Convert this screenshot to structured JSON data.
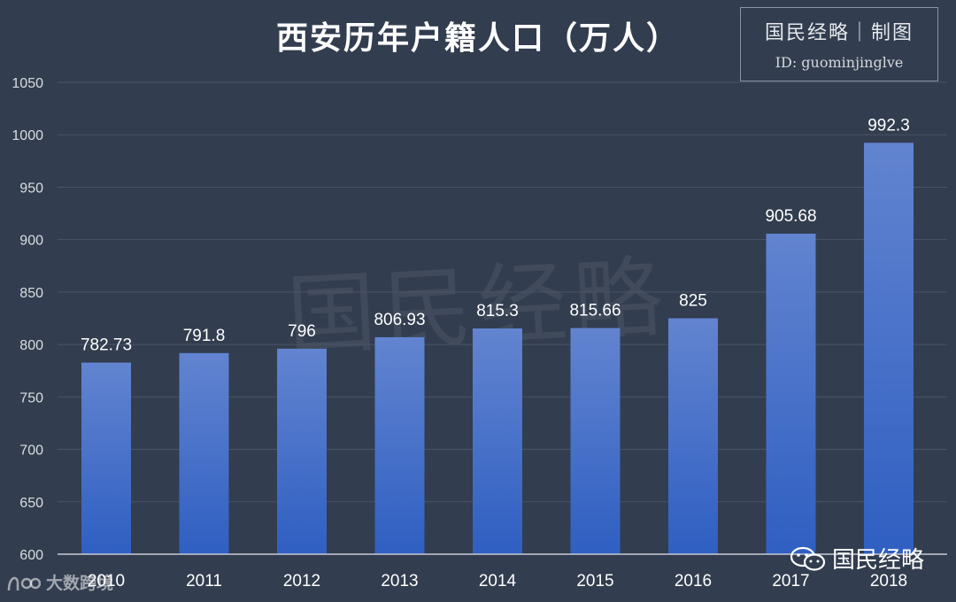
{
  "chart_data": {
    "type": "bar",
    "title": "西安历年户籍人口（万人）",
    "categories": [
      "2010",
      "2011",
      "2012",
      "2013",
      "2014",
      "2015",
      "2016",
      "2017",
      "2018"
    ],
    "values": [
      782.73,
      791.8,
      796,
      806.93,
      815.3,
      815.66,
      825,
      905.68,
      992.3
    ],
    "data_labels": [
      "782.73",
      "791.8",
      "796",
      "806.93",
      "815.3",
      "815.66",
      "825",
      "905.68",
      "992.3"
    ],
    "ylim": [
      600,
      1050
    ],
    "yticks": [
      600,
      650,
      700,
      750,
      800,
      850,
      900,
      950,
      1000,
      1050
    ],
    "xlabel": "",
    "ylabel": "",
    "grid": true,
    "legend": "none"
  },
  "credit": {
    "line1": "国民经略｜制图",
    "line2": "ID: guominjinglve"
  },
  "watermarks": {
    "background": "国民经略",
    "bottom_right": "国民经略",
    "bottom_left": "大数跨境"
  },
  "colors": {
    "background": "#323d4f",
    "bar_top": "#6284d0",
    "bar_bottom": "#2f5fc2",
    "grid": "#4a5566",
    "text": "#ffffff",
    "tick_text": "#d9dde3"
  }
}
